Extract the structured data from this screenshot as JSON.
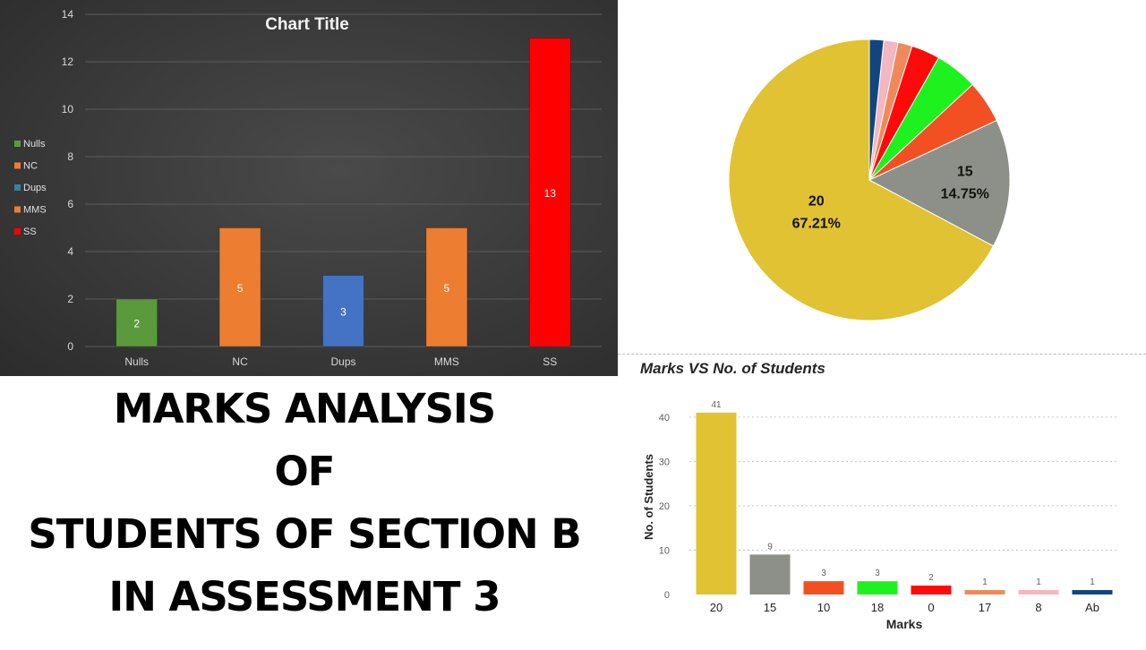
{
  "headline": {
    "lines": [
      "MARKS ANALYSIS",
      "OF",
      "STUDENTS OF SECTION B",
      "IN ASSESSMENT 3"
    ]
  },
  "chart_data": [
    {
      "type": "bar",
      "title": "Chart Title",
      "categories": [
        "Nulls",
        "NC",
        "Dups",
        "MMS",
        "SS"
      ],
      "values": [
        2,
        5,
        3,
        5,
        13
      ],
      "colors": [
        "#5b9a3c",
        "#ed7d31",
        "#4472c4",
        "#ed7d31",
        "#ff0000"
      ],
      "legend": {
        "position": "left",
        "entries": [
          {
            "label": "Nulls",
            "color": "#5b9a3c"
          },
          {
            "label": "NC",
            "color": "#ed7d31"
          },
          {
            "label": "Dups",
            "color": "#31859c"
          },
          {
            "label": "MMS",
            "color": "#ed7d31"
          },
          {
            "label": "SS",
            "color": "#ff0000"
          }
        ]
      },
      "ylim": [
        0,
        14
      ],
      "yticks": [
        0,
        2,
        4,
        6,
        8,
        10,
        12,
        14
      ],
      "grid": true,
      "data_labels": true
    },
    {
      "type": "pie",
      "slices": [
        {
          "label": "20",
          "percent_label": "67.21%",
          "value": 41,
          "color": "#e0c232"
        },
        {
          "label": "15",
          "percent_label": "14.75%",
          "value": 9,
          "color": "#8c9089"
        },
        {
          "label": "10",
          "value": 3,
          "color": "#f25022"
        },
        {
          "label": "18",
          "value": 3,
          "color": "#1ef21e"
        },
        {
          "label": "0",
          "value": 2,
          "color": "#ff0a0a"
        },
        {
          "label": "17",
          "value": 1,
          "color": "#ee8a5a"
        },
        {
          "label": "8",
          "value": 1,
          "color": "#f4b6c0"
        },
        {
          "label": "Ab",
          "value": 1,
          "color": "#11457e"
        }
      ]
    },
    {
      "type": "bar",
      "title": "Marks VS No. of Students",
      "xlabel": "Marks",
      "ylabel": "No. of Students",
      "categories": [
        "20",
        "15",
        "10",
        "18",
        "0",
        "17",
        "8",
        "Ab"
      ],
      "values": [
        41,
        9,
        3,
        3,
        2,
        1,
        1,
        1
      ],
      "colors": [
        "#e0c232",
        "#8c9089",
        "#f25022",
        "#1ef21e",
        "#ff0a0a",
        "#ee8a5a",
        "#f4b6c0",
        "#11457e"
      ],
      "ylim": [
        0,
        44
      ],
      "yticks": [
        0,
        10,
        20,
        30,
        40
      ],
      "grid": true,
      "data_labels": true
    }
  ]
}
